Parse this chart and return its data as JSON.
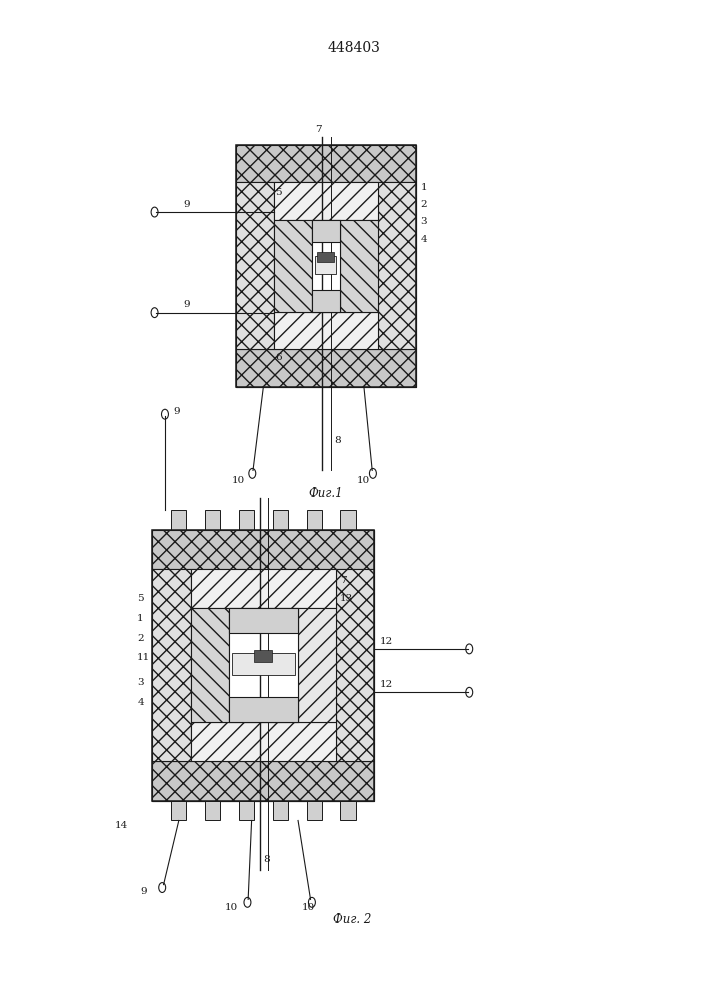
{
  "title": "448403",
  "fig1_label": "Фиг.1",
  "fig2_label": "Фиг. 2",
  "bg_color": "#ffffff",
  "lc": "#1a1a1a",
  "fig1": {
    "bx": 0.33,
    "by": 0.615,
    "bw": 0.26,
    "bh": 0.245
  },
  "fig2": {
    "bx": 0.21,
    "by": 0.195,
    "bw": 0.32,
    "bh": 0.275
  }
}
